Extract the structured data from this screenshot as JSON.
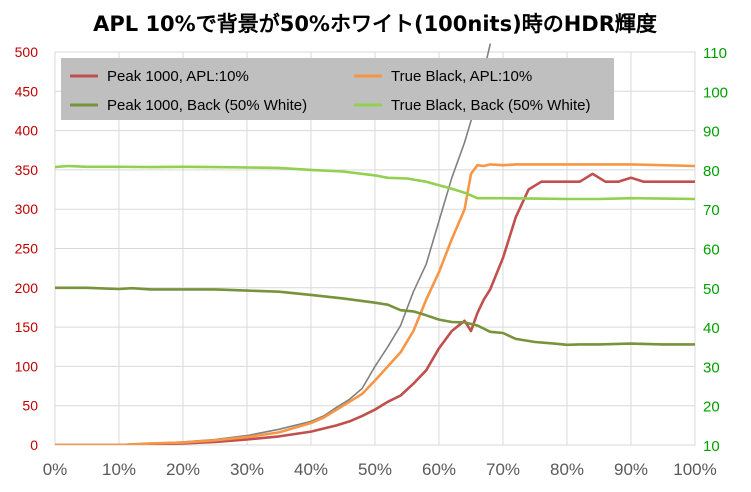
{
  "chart_data": {
    "type": "line",
    "title": "APL 10%で背景が50%ホワイト(100nits)時のHDR輝度",
    "x_tick_labels": [
      "0%",
      "10%",
      "20%",
      "30%",
      "40%",
      "50%",
      "60%",
      "70%",
      "80%",
      "90%",
      "100%"
    ],
    "xlim": [
      0,
      100
    ],
    "y_left": {
      "range": [
        0,
        500
      ],
      "ticks": [
        0,
        50,
        100,
        150,
        200,
        250,
        300,
        350,
        400,
        450,
        500
      ],
      "color": "#c00000"
    },
    "y_right": {
      "range": [
        10,
        110
      ],
      "ticks": [
        10,
        20,
        30,
        40,
        50,
        60,
        70,
        80,
        90,
        100,
        110
      ],
      "color": "#00a000"
    },
    "grid": true,
    "legend": {
      "position": "top-left",
      "background": "#bfbfbf"
    },
    "series": [
      {
        "name": "Peak 1000, APL:10%",
        "color": "#c0504d",
        "axis": "left",
        "legend": true,
        "x": [
          0,
          5,
          10,
          15,
          20,
          25,
          30,
          35,
          40,
          42,
          44,
          46,
          48,
          50,
          52,
          54,
          56,
          58,
          60,
          62,
          64,
          65,
          66,
          67,
          68,
          70,
          72,
          74,
          76,
          78,
          80,
          82,
          84,
          86,
          88,
          90,
          92,
          95,
          100
        ],
        "y": [
          0,
          0,
          0,
          1,
          2,
          4,
          7,
          11,
          17,
          21,
          25,
          30,
          37,
          45,
          55,
          63,
          78,
          95,
          123,
          145,
          158,
          145,
          168,
          185,
          198,
          238,
          290,
          325,
          335,
          335,
          335,
          335,
          345,
          335,
          335,
          340,
          335,
          335,
          335
        ]
      },
      {
        "name": "True Black, APL:10%",
        "color": "#f79646",
        "axis": "left",
        "legend": true,
        "x": [
          0,
          5,
          10,
          15,
          20,
          25,
          30,
          35,
          40,
          42,
          44,
          46,
          48,
          50,
          52,
          54,
          56,
          58,
          60,
          62,
          64,
          65,
          66,
          67,
          68,
          70,
          72,
          75,
          80,
          85,
          90,
          95,
          100
        ],
        "y": [
          0,
          0,
          0,
          2,
          3,
          6,
          10,
          16,
          28,
          35,
          45,
          55,
          65,
          82,
          100,
          118,
          145,
          185,
          220,
          262,
          300,
          345,
          356,
          355,
          357,
          356,
          357,
          357,
          357,
          357,
          357,
          356,
          355
        ]
      },
      {
        "name": "Peak 1000, Back (50% White)",
        "color": "#77933c",
        "axis": "right",
        "legend": true,
        "x": [
          0,
          5,
          8,
          10,
          12,
          15,
          20,
          25,
          30,
          35,
          40,
          45,
          50,
          52,
          54,
          56,
          58,
          60,
          62,
          64,
          66,
          68,
          70,
          72,
          75,
          78,
          80,
          82,
          85,
          90,
          95,
          100
        ],
        "y": [
          50,
          50,
          49.8,
          49.7,
          49.9,
          49.6,
          49.6,
          49.6,
          49.3,
          49,
          48.2,
          47.3,
          46.2,
          45.7,
          44.3,
          44,
          43,
          41.9,
          41.3,
          41.2,
          40.4,
          38.8,
          38.5,
          37,
          36.2,
          35.8,
          35.5,
          35.6,
          35.6,
          35.8,
          35.6,
          35.6
        ]
      },
      {
        "name": "True Black, Back (50% White)",
        "color": "#92d050",
        "axis": "right",
        "legend": true,
        "x": [
          0,
          2,
          5,
          10,
          15,
          20,
          25,
          30,
          35,
          40,
          45,
          50,
          52,
          55,
          58,
          60,
          62,
          64,
          66,
          68,
          70,
          75,
          80,
          85,
          90,
          95,
          100
        ],
        "y": [
          80.7,
          81,
          80.8,
          80.8,
          80.7,
          80.8,
          80.7,
          80.6,
          80.5,
          80,
          79.6,
          78.6,
          78,
          77.8,
          77,
          76.1,
          75.2,
          74.2,
          72.8,
          72.8,
          72.8,
          72.7,
          72.6,
          72.6,
          72.8,
          72.7,
          72.6
        ]
      },
      {
        "name": "",
        "color": "#808080",
        "axis": "left",
        "legend": false,
        "x": [
          0,
          5,
          10,
          15,
          20,
          25,
          30,
          35,
          40,
          42,
          44,
          46,
          48,
          50,
          52,
          54,
          56,
          58,
          60,
          62,
          64,
          66,
          68
        ],
        "y": [
          0,
          0,
          0,
          2,
          4,
          7,
          12,
          20,
          30,
          37,
          48,
          58,
          72,
          100,
          125,
          152,
          195,
          230,
          285,
          340,
          385,
          440,
          510
        ]
      }
    ]
  }
}
